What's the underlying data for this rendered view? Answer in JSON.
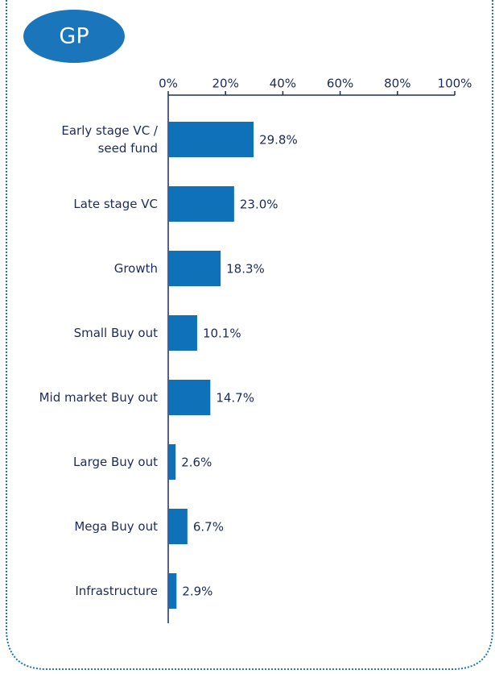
{
  "chart_data": {
    "type": "barh",
    "badge": "GP",
    "categories": [
      "Early stage VC / seed fund",
      "Late stage VC",
      "Growth",
      "Small Buy out",
      "Mid market Buy out",
      "Large Buy out",
      "Mega Buy out",
      "Infrastructure"
    ],
    "values": [
      29.8,
      23.0,
      18.3,
      10.1,
      14.7,
      2.6,
      6.7,
      2.9
    ],
    "value_labels": [
      "29.8%",
      "23.0%",
      "18.3%",
      "10.1%",
      "14.7%",
      "2.6%",
      "6.7%",
      "2.9%"
    ],
    "color": "#0f72b9",
    "xlim": [
      0,
      100
    ],
    "xticks": [
      {
        "value": 0,
        "label": "0%"
      },
      {
        "value": 20,
        "label": "20%"
      },
      {
        "value": 40,
        "label": "40%"
      },
      {
        "value": 60,
        "label": "60%"
      },
      {
        "value": 80,
        "label": "80%"
      },
      {
        "value": 100,
        "label": "100%"
      }
    ]
  }
}
